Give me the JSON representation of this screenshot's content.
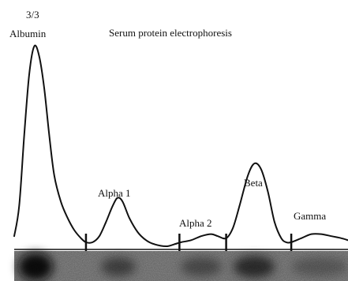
{
  "panel_label": "3/3",
  "chart_data": {
    "type": "line",
    "title": "Serum protein electrophoresis",
    "xlabel": "",
    "ylabel": "",
    "grid": false,
    "peaks": [
      "Albumin",
      "Alpha 1",
      "Alpha 2",
      "Beta",
      "Gamma"
    ],
    "fraction_boundaries_x": [
      0.215,
      0.495,
      0.635,
      0.83
    ],
    "series": [
      {
        "values": [
          [
            0.0,
            0.05
          ],
          [
            0.015,
            0.2
          ],
          [
            0.03,
            0.55
          ],
          [
            0.045,
            0.85
          ],
          [
            0.06,
            0.99
          ],
          [
            0.075,
            0.94
          ],
          [
            0.09,
            0.78
          ],
          [
            0.105,
            0.55
          ],
          [
            0.12,
            0.35
          ],
          [
            0.14,
            0.22
          ],
          [
            0.16,
            0.14
          ],
          [
            0.18,
            0.08
          ],
          [
            0.2,
            0.04
          ],
          [
            0.215,
            0.02
          ],
          [
            0.235,
            0.02
          ],
          [
            0.255,
            0.05
          ],
          [
            0.275,
            0.12
          ],
          [
            0.295,
            0.2
          ],
          [
            0.31,
            0.24
          ],
          [
            0.325,
            0.22
          ],
          [
            0.345,
            0.14
          ],
          [
            0.37,
            0.07
          ],
          [
            0.395,
            0.03
          ],
          [
            0.42,
            0.01
          ],
          [
            0.455,
            0.0
          ],
          [
            0.48,
            0.01
          ],
          [
            0.5,
            0.02
          ],
          [
            0.53,
            0.03
          ],
          [
            0.56,
            0.05
          ],
          [
            0.59,
            0.06
          ],
          [
            0.61,
            0.05
          ],
          [
            0.635,
            0.04
          ],
          [
            0.655,
            0.09
          ],
          [
            0.675,
            0.2
          ],
          [
            0.7,
            0.35
          ],
          [
            0.72,
            0.41
          ],
          [
            0.74,
            0.38
          ],
          [
            0.76,
            0.27
          ],
          [
            0.78,
            0.12
          ],
          [
            0.8,
            0.04
          ],
          [
            0.815,
            0.02
          ],
          [
            0.83,
            0.02
          ],
          [
            0.86,
            0.04
          ],
          [
            0.89,
            0.06
          ],
          [
            0.92,
            0.06
          ],
          [
            0.95,
            0.05
          ],
          [
            0.98,
            0.04
          ],
          [
            1.0,
            0.03
          ]
        ]
      }
    ]
  }
}
